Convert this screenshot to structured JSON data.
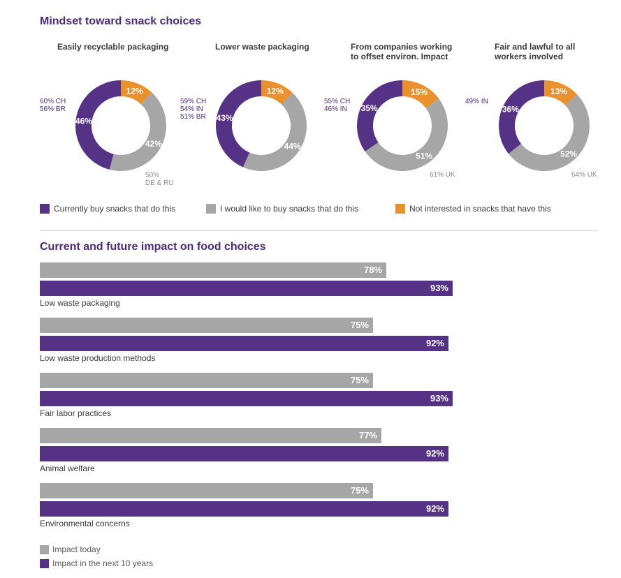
{
  "colors": {
    "purple": "#553286",
    "gray": "#a6a6a6",
    "orange": "#e8912d",
    "title": "#4a2a7a"
  },
  "chart_data": [
    {
      "type": "pie",
      "title": "Mindset toward snack choices",
      "categories": [
        "Currently buy snacks that do this",
        "I would like to buy snacks that do this",
        "Not interested in snacks that have this"
      ],
      "donuts": [
        {
          "title_lines": [
            "Easily recyclable packaging"
          ],
          "values": [
            46,
            42,
            12
          ],
          "labels": [
            "46%",
            "42%",
            "12%"
          ],
          "callout_purple": [
            "60% CH",
            "56% BR"
          ],
          "callout_gray": [
            "50%",
            "DE & RU"
          ]
        },
        {
          "title_lines": [
            "Lower waste packaging"
          ],
          "values": [
            43,
            44,
            12
          ],
          "labels": [
            "43%",
            "44%",
            "12%"
          ],
          "callout_purple": [
            "59% CH",
            "54% IN",
            "51% BR"
          ],
          "callout_gray": []
        },
        {
          "title_lines": [
            "From companies working",
            "to offset environ. Impact"
          ],
          "values": [
            35,
            51,
            15
          ],
          "labels": [
            "35%",
            "51%",
            "15%"
          ],
          "callout_purple": [
            "55% CH",
            "46% IN"
          ],
          "callout_gray": [
            "61% UK"
          ]
        },
        {
          "title_lines": [
            "Fair and lawful to all",
            "workers involved"
          ],
          "values": [
            36,
            52,
            13
          ],
          "labels": [
            "36%",
            "52%",
            "13%"
          ],
          "callout_purple": [
            "49% IN"
          ],
          "callout_gray": [
            "64% UK"
          ]
        }
      ],
      "legend": [
        "Currently buy snacks that do this",
        "I would like to buy snacks that do this",
        "Not interested in snacks that have this"
      ]
    },
    {
      "type": "bar",
      "orientation": "horizontal",
      "title": "Current and future impact on food choices",
      "xlim": [
        0,
        100
      ],
      "categories": [
        "Low waste packaging",
        "Low waste production methods",
        "Fair labor practices",
        "Animal welfare",
        "Environmental concerns"
      ],
      "series": [
        {
          "name": "Impact today",
          "values": [
            78,
            75,
            75,
            77,
            75
          ],
          "labels": [
            "78%",
            "75%",
            "75%",
            "77%",
            "75%"
          ]
        },
        {
          "name": "Impact in the next 10 years",
          "values": [
            93,
            92,
            93,
            92,
            92
          ],
          "labels": [
            "93%",
            "92%",
            "93%",
            "92%",
            "92%"
          ]
        }
      ]
    }
  ]
}
